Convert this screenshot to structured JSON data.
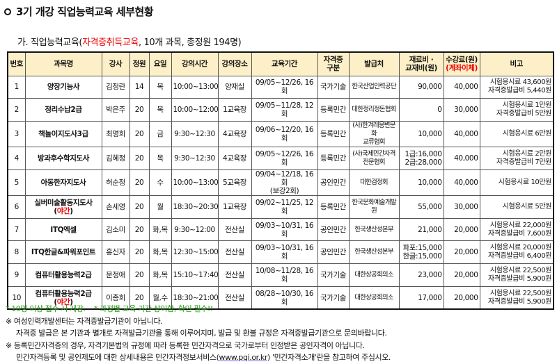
{
  "title": "3기 개강 직업능력교육 세부현황",
  "subtitle": {
    "prefix": "가. 직업능력교육(",
    "highlight": "자격증취득교육",
    "suffix": ", 10개 과목, 총정원 194명)"
  },
  "headers": [
    "번호",
    "과목명",
    "강사",
    "정원",
    "요일",
    "강의시간",
    "강의장소",
    "교육기간",
    "자격증\n구분",
    "발급처",
    "재료비 ·\n교재비(원)",
    "수강료(원)",
    "비고"
  ],
  "fee_note": "(계좌이체)",
  "rows": [
    {
      "no": "1",
      "name": "양장기능사",
      "night": "",
      "teacher": "김정란",
      "cap": "14",
      "day": "목",
      "time": "10:00~13:00",
      "room": "양재실",
      "period": "09/05~12/26, 16회",
      "type": "국가기술",
      "issuer": "한국산업인력공단",
      "material": "90,000",
      "fee": "40,000",
      "note": "시험응시료 43,600원\n자격증발급비 5,440원"
    },
    {
      "no": "2",
      "name": "정리수납2급",
      "night": "",
      "teacher": "박은주",
      "cap": "20",
      "day": "목",
      "time": "10:00~12:00",
      "room": "1교육장",
      "period": "09/05~11/28, 12회",
      "type": "등록민간",
      "issuer": "대한정리정돈협회",
      "material": "0",
      "fee": "30,000",
      "note": "시험응시료 1만원\n자격증발급비 5만원"
    },
    {
      "no": "3",
      "name": "책놀이지도사3급",
      "night": "",
      "teacher": "최명희",
      "cap": "20",
      "day": "금",
      "time": "9:30~12:30",
      "room": "4교육장",
      "period": "09/06~12/20, 16회",
      "type": "등록민간",
      "issuer": "(사)한겨레응변문화\n교류협회",
      "material": "10,000",
      "fee": "40,000",
      "note": "시험응시료 6만원"
    },
    {
      "no": "4",
      "name": "방과후수학지도사",
      "night": "",
      "teacher": "김혜정",
      "cap": "20",
      "day": "목",
      "time": "9:30~12:30",
      "room": "4교육장",
      "period": "09/05~12/26, 16회",
      "type": "등록민간",
      "issuer": "(사)국제민간자격\n전문협회",
      "material": "1급:16,000\n2급:28,000",
      "fee": "40,000",
      "note": "시험응시료 2만원\n자격증발급비 7만원"
    },
    {
      "no": "5",
      "name": "아동한자지도사",
      "night": "",
      "teacher": "허순정",
      "cap": "20",
      "day": "수",
      "time": "10:00~13:00",
      "room": "5교육장",
      "period": "09/04~12/18, 16회\n(보강2회)",
      "type": "공인민간",
      "issuer": "대한검정회",
      "material": "10,000",
      "fee": "40,000",
      "note": "시험응시료 10만원"
    },
    {
      "no": "6",
      "name": "실버미술활동지도사",
      "night": "야간",
      "teacher": "손세영",
      "cap": "20",
      "day": "월",
      "time": "18:30~20:30",
      "room": "1교육장",
      "period": "09/02~11/25, 12회",
      "type": "등록민간",
      "issuer": "한국문화예술개발원",
      "material": "55,000",
      "fee": "30,000",
      "note": "시험응시료 5만원"
    },
    {
      "no": "7",
      "name": "ITQ엑셀",
      "night": "",
      "teacher": "김소미",
      "cap": "20",
      "day": "화,목",
      "time": "9:30~12:00",
      "room": "전산실",
      "period": "09/03~10/31, 16회",
      "type": "공인민간",
      "issuer": "한국생산성본부",
      "material": "21,000",
      "fee": "20,000",
      "note": "시험응시료 22,000원\n자격증발급비 7,600원"
    },
    {
      "no": "8",
      "name": "ITQ한글&파워포인트",
      "night": "",
      "teacher": "홍신자",
      "cap": "20",
      "day": "화,목",
      "time": "12:30~15:00",
      "room": "전산실",
      "period": "09/03~10/31, 16회",
      "type": "공인민간",
      "issuer": "한국생산성본부",
      "material": "파포:15,000\n한글:15,000",
      "fee": "20,000",
      "note": "시험응시료 20,000원\n자격증발급비 6,400원"
    },
    {
      "no": "9",
      "name": "컴퓨터활용능력2급",
      "night": "",
      "teacher": "문정애",
      "cap": "20",
      "day": "화,목",
      "time": "15:10~17:40",
      "room": "전산실",
      "period": "10/08~11/28, 16회",
      "type": "국가기술",
      "issuer": "대한상공회의소",
      "material": "23,000",
      "fee": "20,000",
      "note": "시험응시료 22,500원\n자격증발급비 5,900원"
    },
    {
      "no": "10",
      "name": "컴퓨터활용능력2급",
      "night": "야간",
      "teacher": "이종희",
      "cap": "20",
      "day": "월,수",
      "time": "18:30~21:00",
      "room": "전산실",
      "period": "08/28~10/30, 16회",
      "type": "국가기술",
      "issuer": "대한상공회의소",
      "material": "17,000",
      "fee": "20,000",
      "note": "시험응시료 22,500원\n자격증발급비 5,900원"
    }
  ],
  "notes": {
    "green1": "* 10명 이상 접수 시 개강.",
    "green2": "* 과정별 교육 기간 상이함, 확인 필수!!",
    "n1": "※ 여성인력개발센터는 자격증발급기관이 아닙니다.",
    "n1b": "자격증 발급은 본 기관과 별개로 자격발급기관을 통해 이루어지며, 발급 및 환불 규정은 자격증발급기관으로 문의바랍니다.",
    "n2": "※ 등록민간자격증의 경우, 자격기본법의 규정에 따라 등록한 민간자격으로 국가로부터 인정받은 공인자격이 아닙니다.",
    "n2b_pre": "민간자격등록 및 공인제도에 대한 상세내용은 민간자격정보서비스(",
    "n2b_link": "www.pqi.or.kr",
    "n2b_post": ") '민간자격소개'란을 참고하여 주십시오."
  },
  "colors": {
    "header_bg": "#fdf0c8",
    "accent_red": "#ee0000",
    "note_green": "#2a9d1a"
  }
}
